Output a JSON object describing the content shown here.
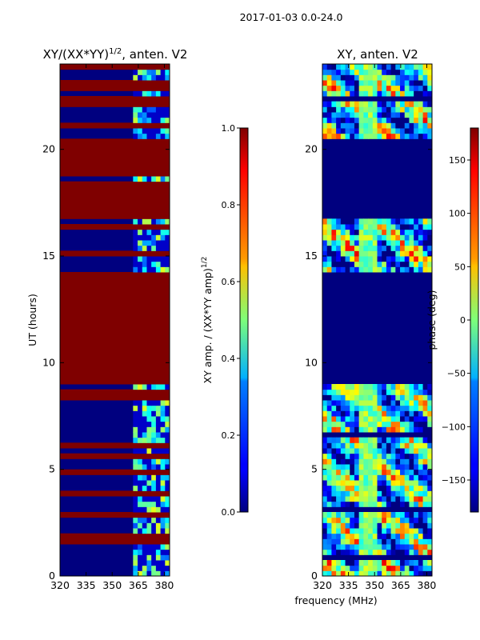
{
  "figure": {
    "suptitle": "2017-01-03 0.0-24.0",
    "xlabel_shared": "frequency (MHz)"
  },
  "colors": {
    "low": "#00007f",
    "high": "#7f0000"
  },
  "chart_data": [
    {
      "type": "heatmap",
      "title_main": "XY/(XX*YY)",
      "title_exp": "1/2",
      "title_suffix": ", anten. V2",
      "xlabel": "",
      "ylabel": "UT (hours)",
      "xlim": [
        320,
        383
      ],
      "ylim": [
        0,
        24
      ],
      "xticks": [
        "320",
        "335",
        "350",
        "365",
        "380"
      ],
      "yticks": [
        "0",
        "5",
        "10",
        "15",
        "20"
      ],
      "colorbar": {
        "label_main": "XY amp. / (XX*YY amp)",
        "label_exp": "1/2",
        "range": [
          0.0,
          1.0
        ],
        "ticks": [
          "0.0",
          "0.2",
          "0.4",
          "0.6",
          "0.8",
          "1.0"
        ],
        "colormap": "jet"
      },
      "high_value_hour_bands": [
        [
          0,
          0.1
        ],
        [
          1.2,
          1.3
        ],
        [
          1.5,
          1.75
        ],
        [
          1.85,
          1.95
        ],
        [
          2.8,
          2.9
        ],
        [
          3.4,
          3.5
        ],
        [
          3.8,
          3.9
        ],
        [
          4.4,
          4.5
        ],
        [
          4.65,
          4.95
        ],
        [
          5.25,
          5.3
        ],
        [
          5.55,
          5.75
        ],
        [
          6.05,
          6.25
        ],
        [
          6.5,
          6.6
        ],
        [
          7.5,
          7.6
        ],
        [
          8.3,
          8.4
        ],
        [
          8.6,
          8.7
        ],
        [
          8.9,
          14.2
        ],
        [
          15.1,
          15.2
        ],
        [
          16.2,
          16.5
        ],
        [
          16.7,
          18.6
        ],
        [
          18.8,
          20.5
        ],
        [
          21.1,
          21.2
        ],
        [
          21.7,
          21.8
        ],
        [
          22.1,
          22.6
        ],
        [
          22.8,
          22.9
        ],
        [
          23.1,
          23.2
        ],
        [
          23.5,
          23.6
        ],
        [
          23.8,
          23.9
        ]
      ]
    },
    {
      "type": "heatmap",
      "title": "XY, anten. V2",
      "xlabel": "frequency (MHz)",
      "ylabel": "",
      "xlim": [
        320,
        383
      ],
      "ylim": [
        0,
        24
      ],
      "xticks": [
        "320",
        "335",
        "350",
        "365",
        "380"
      ],
      "yticks": [
        "0",
        "5",
        "10",
        "15",
        "20"
      ],
      "colorbar": {
        "label": "phase (deg)",
        "range": [
          -180,
          180
        ],
        "ticks": [
          "−150",
          "−100",
          "−50",
          "0",
          "50",
          "100",
          "150"
        ],
        "colormap": "jet"
      },
      "uniform_hour_bands": [
        [
          8.9,
          14.2
        ],
        [
          16.7,
          20.5
        ]
      ]
    }
  ]
}
